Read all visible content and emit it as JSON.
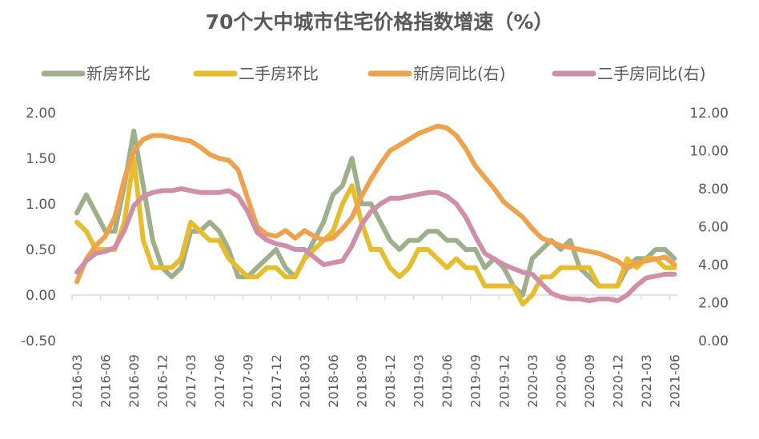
{
  "chart_data": {
    "type": "line",
    "title": "70个大中城市住宅价格指数增速（%）",
    "x_start": "2016-03",
    "x_tick_labels": [
      "2016-03",
      "2016-06",
      "2016-09",
      "2016-12",
      "2017-03",
      "2017-06",
      "2017-09",
      "2017-12",
      "2018-03",
      "2018-06",
      "2018-09",
      "2018-12",
      "2019-03",
      "2019-06",
      "2019-09",
      "2019-12",
      "2020-03",
      "2020-06",
      "2020-09",
      "2020-12",
      "2021-03",
      "2021-06"
    ],
    "y_left": {
      "range": [
        -0.5,
        2.0
      ],
      "ticks": [
        "-0.50",
        "0.00",
        "0.50",
        "1.00",
        "1.50",
        "2.00"
      ]
    },
    "y_right": {
      "range": [
        0,
        12
      ],
      "ticks": [
        "0.00",
        "2.00",
        "4.00",
        "6.00",
        "8.00",
        "10.00",
        "12.00"
      ]
    },
    "legend_position": "top",
    "grid": false,
    "series": [
      {
        "name": "新房环比",
        "axis": "left",
        "color": "#9eaf8c",
        "values": [
          0.9,
          1.1,
          0.9,
          0.7,
          0.7,
          1.2,
          1.8,
          1.2,
          0.6,
          0.3,
          0.2,
          0.3,
          0.7,
          0.7,
          0.8,
          0.7,
          0.5,
          0.2,
          0.2,
          0.3,
          0.4,
          0.5,
          0.3,
          0.2,
          0.4,
          0.6,
          0.8,
          1.1,
          1.2,
          1.5,
          1.0,
          1.0,
          0.8,
          0.6,
          0.5,
          0.6,
          0.6,
          0.7,
          0.7,
          0.6,
          0.6,
          0.5,
          0.5,
          0.3,
          0.4,
          0.3,
          0.1,
          0.0,
          0.4,
          0.5,
          0.6,
          0.5,
          0.6,
          0.3,
          0.2,
          0.1,
          0.1,
          0.1,
          0.3,
          0.4,
          0.4,
          0.5,
          0.5,
          0.4
        ]
      },
      {
        "name": "二手房环比",
        "axis": "left",
        "color": "#e6bd2f",
        "values": [
          0.8,
          0.7,
          0.5,
          0.5,
          0.5,
          0.8,
          1.5,
          0.6,
          0.3,
          0.3,
          0.3,
          0.4,
          0.8,
          0.7,
          0.6,
          0.6,
          0.4,
          0.3,
          0.2,
          0.2,
          0.3,
          0.3,
          0.2,
          0.2,
          0.4,
          0.5,
          0.6,
          0.7,
          1.0,
          1.2,
          0.8,
          0.5,
          0.5,
          0.3,
          0.2,
          0.3,
          0.5,
          0.5,
          0.4,
          0.3,
          0.4,
          0.3,
          0.3,
          0.1,
          0.1,
          0.1,
          0.1,
          -0.1,
          0.0,
          0.2,
          0.2,
          0.3,
          0.3,
          0.3,
          0.3,
          0.1,
          0.1,
          0.1,
          0.4,
          0.3,
          0.4,
          0.4,
          0.3,
          0.3
        ]
      },
      {
        "name": "新房同比(右)",
        "axis": "right",
        "color": "#eea24e",
        "values": [
          3.1,
          4.3,
          5.0,
          5.5,
          6.5,
          8.5,
          10.0,
          10.6,
          10.8,
          10.8,
          10.7,
          10.6,
          10.5,
          10.2,
          9.8,
          9.6,
          9.5,
          9.0,
          7.5,
          6.0,
          5.6,
          5.5,
          5.8,
          5.4,
          5.8,
          5.5,
          5.3,
          5.4,
          5.9,
          6.5,
          7.6,
          8.5,
          9.3,
          10.0,
          10.3,
          10.6,
          10.9,
          11.1,
          11.3,
          11.2,
          10.8,
          10.1,
          9.2,
          8.6,
          8.0,
          7.3,
          6.9,
          6.5,
          5.9,
          5.4,
          5.2,
          5.0,
          4.9,
          4.8,
          4.7,
          4.6,
          4.4,
          4.2,
          3.8,
          4.1,
          4.2,
          4.3,
          4.4,
          4.0
        ]
      },
      {
        "name": "二手房同比(右)",
        "axis": "right",
        "color": "#d08fa8",
        "values": [
          3.6,
          4.2,
          4.6,
          4.7,
          4.9,
          5.8,
          7.1,
          7.6,
          7.8,
          7.9,
          7.9,
          8.0,
          7.9,
          7.8,
          7.8,
          7.8,
          7.9,
          7.6,
          6.8,
          5.7,
          5.3,
          5.1,
          5.0,
          4.8,
          4.8,
          4.4,
          4.0,
          4.1,
          4.2,
          5.0,
          6.1,
          6.8,
          7.2,
          7.5,
          7.5,
          7.6,
          7.7,
          7.8,
          7.8,
          7.6,
          7.2,
          6.5,
          5.5,
          4.6,
          4.3,
          4.0,
          3.8,
          3.6,
          3.5,
          3.0,
          2.5,
          2.3,
          2.2,
          2.2,
          2.1,
          2.2,
          2.2,
          2.1,
          2.4,
          2.9,
          3.3,
          3.4,
          3.5,
          3.5
        ]
      }
    ]
  }
}
